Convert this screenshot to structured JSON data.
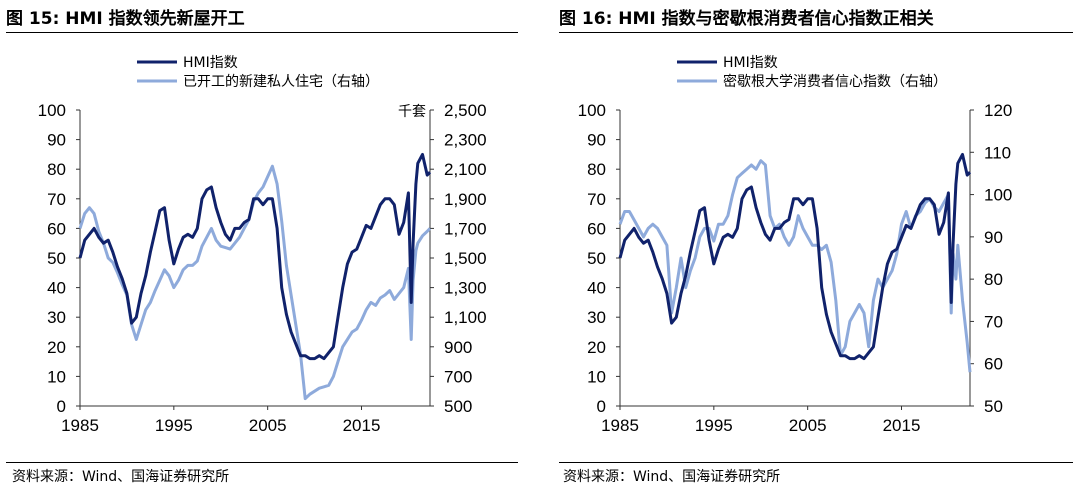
{
  "colors": {
    "hmi": "#10226b",
    "secondary": "#8eaadb",
    "axis": "#333333"
  },
  "footer": {
    "source": "资料来源：Wind、国海证券研究所"
  },
  "chart_data": [
    {
      "type": "line",
      "title": "图 15:  HMI 指数领先新屋开工",
      "xticks": [
        "1985",
        "1995",
        "2005",
        "2015"
      ],
      "xlim": [
        1985,
        2022.3
      ],
      "ylim_left": [
        0,
        100
      ],
      "yticks_left": [
        "0",
        "10",
        "20",
        "30",
        "40",
        "50",
        "60",
        "70",
        "80",
        "90",
        "100"
      ],
      "ylim_right": [
        500,
        2500
      ],
      "yticks_right": [
        "500",
        "700",
        "900",
        "1,100",
        "1,300",
        "1,500",
        "1,700",
        "1,900",
        "2,100",
        "2,300",
        "2,500"
      ],
      "right_unit": "千套",
      "series": [
        {
          "name": "HMI指数",
          "axis": "left",
          "color": "hmi",
          "x": [
            1985,
            1985.5,
            1986,
            1986.5,
            1987,
            1987.5,
            1988,
            1988.5,
            1989,
            1989.5,
            1990,
            1990.5,
            1991,
            1991.5,
            1992,
            1992.5,
            1993,
            1993.5,
            1994,
            1994.5,
            1995,
            1995.5,
            1996,
            1996.5,
            1997,
            1997.5,
            1998,
            1998.5,
            1999,
            1999.5,
            2000,
            2000.5,
            2001,
            2001.5,
            2002,
            2002.5,
            2003,
            2003.5,
            2004,
            2004.5,
            2005,
            2005.5,
            2006,
            2006.5,
            2007,
            2007.5,
            2008,
            2008.5,
            2009,
            2009.5,
            2010,
            2010.5,
            2011,
            2011.5,
            2012,
            2012.5,
            2013,
            2013.5,
            2014,
            2014.5,
            2015,
            2015.5,
            2016,
            2016.5,
            2017,
            2017.5,
            2018,
            2018.5,
            2019,
            2019.5,
            2020,
            2020.3,
            2020.5,
            2020.8,
            2021,
            2021.5,
            2022,
            2022.3
          ],
          "y": [
            50,
            56,
            58,
            60,
            57,
            55,
            56,
            52,
            47,
            43,
            38,
            28,
            30,
            38,
            44,
            52,
            59,
            66,
            67,
            56,
            48,
            53,
            57,
            58,
            57,
            60,
            70,
            73,
            74,
            67,
            62,
            58,
            56,
            60,
            60,
            62,
            63,
            70,
            70,
            68,
            70,
            70,
            60,
            40,
            31,
            25,
            21,
            17,
            17,
            16,
            16,
            17,
            16,
            18,
            20,
            30,
            40,
            48,
            52,
            53,
            57,
            61,
            60,
            64,
            68,
            70,
            70,
            68,
            58,
            62,
            72,
            35,
            55,
            75,
            82,
            85,
            78,
            79
          ]
        },
        {
          "name": "已开工的新建私人住宅（右轴）",
          "axis": "right",
          "color": "secondary",
          "x": [
            1985,
            1985.5,
            1986,
            1986.5,
            1987,
            1987.5,
            1988,
            1988.5,
            1989,
            1989.5,
            1990,
            1990.5,
            1991,
            1991.5,
            1992,
            1992.5,
            1993,
            1993.5,
            1994,
            1994.5,
            1995,
            1995.5,
            1996,
            1996.5,
            1997,
            1997.5,
            1998,
            1998.5,
            1999,
            1999.5,
            2000,
            2000.5,
            2001,
            2001.5,
            2002,
            2002.5,
            2003,
            2003.5,
            2004,
            2004.5,
            2005,
            2005.5,
            2006,
            2006.5,
            2007,
            2007.5,
            2008,
            2008.5,
            2009,
            2009.5,
            2010,
            2010.5,
            2011,
            2011.5,
            2012,
            2012.5,
            2013,
            2013.5,
            2014,
            2014.5,
            2015,
            2015.5,
            2016,
            2016.5,
            2017,
            2017.5,
            2018,
            2018.5,
            2019,
            2019.5,
            2020,
            2020.3,
            2020.5,
            2020.8,
            2021,
            2021.5,
            2022,
            2022.3
          ],
          "y": [
            1700,
            1800,
            1840,
            1800,
            1680,
            1600,
            1500,
            1470,
            1400,
            1320,
            1250,
            1050,
            950,
            1050,
            1150,
            1200,
            1280,
            1350,
            1420,
            1380,
            1300,
            1350,
            1420,
            1450,
            1450,
            1480,
            1580,
            1640,
            1700,
            1620,
            1580,
            1570,
            1560,
            1600,
            1640,
            1700,
            1760,
            1880,
            1940,
            1980,
            2050,
            2120,
            2000,
            1750,
            1450,
            1250,
            1050,
            850,
            550,
            580,
            600,
            620,
            630,
            640,
            700,
            800,
            900,
            950,
            1000,
            1020,
            1080,
            1150,
            1200,
            1180,
            1230,
            1250,
            1280,
            1220,
            1260,
            1300,
            1430,
            950,
            1350,
            1550,
            1600,
            1650,
            1680,
            1700
          ]
        }
      ]
    },
    {
      "type": "line",
      "title": "图 16:  HMI 指数与密歇根消费者信心指数正相关",
      "xticks": [
        "1985",
        "1995",
        "2005",
        "2015"
      ],
      "xlim": [
        1985,
        2022.3
      ],
      "ylim_left": [
        0,
        100
      ],
      "yticks_left": [
        "0",
        "10",
        "20",
        "30",
        "40",
        "50",
        "60",
        "70",
        "80",
        "90",
        "100"
      ],
      "ylim_right": [
        50,
        120
      ],
      "yticks_right": [
        "50",
        "60",
        "70",
        "80",
        "90",
        "100",
        "110",
        "120"
      ],
      "series": [
        {
          "name": "HMI指数",
          "axis": "left",
          "color": "hmi",
          "x": [
            1985,
            1985.5,
            1986,
            1986.5,
            1987,
            1987.5,
            1988,
            1988.5,
            1989,
            1989.5,
            1990,
            1990.5,
            1991,
            1991.5,
            1992,
            1992.5,
            1993,
            1993.5,
            1994,
            1994.5,
            1995,
            1995.5,
            1996,
            1996.5,
            1997,
            1997.5,
            1998,
            1998.5,
            1999,
            1999.5,
            2000,
            2000.5,
            2001,
            2001.5,
            2002,
            2002.5,
            2003,
            2003.5,
            2004,
            2004.5,
            2005,
            2005.5,
            2006,
            2006.5,
            2007,
            2007.5,
            2008,
            2008.5,
            2009,
            2009.5,
            2010,
            2010.5,
            2011,
            2011.5,
            2012,
            2012.5,
            2013,
            2013.5,
            2014,
            2014.5,
            2015,
            2015.5,
            2016,
            2016.5,
            2017,
            2017.5,
            2018,
            2018.5,
            2019,
            2019.5,
            2020,
            2020.3,
            2020.5,
            2020.8,
            2021,
            2021.5,
            2022,
            2022.3
          ],
          "y": [
            50,
            56,
            58,
            60,
            57,
            55,
            56,
            52,
            47,
            43,
            38,
            28,
            30,
            38,
            44,
            52,
            59,
            66,
            67,
            56,
            48,
            53,
            57,
            58,
            57,
            60,
            70,
            73,
            74,
            67,
            62,
            58,
            56,
            60,
            60,
            62,
            63,
            70,
            70,
            68,
            70,
            70,
            60,
            40,
            31,
            25,
            21,
            17,
            17,
            16,
            16,
            17,
            16,
            18,
            20,
            30,
            40,
            48,
            52,
            53,
            57,
            61,
            60,
            64,
            68,
            70,
            70,
            68,
            58,
            62,
            72,
            35,
            55,
            75,
            82,
            85,
            78,
            79
          ]
        },
        {
          "name": "密歇根大学消费者信心指数（右轴）",
          "axis": "right",
          "color": "secondary",
          "x": [
            1985,
            1985.5,
            1986,
            1986.5,
            1987,
            1987.5,
            1988,
            1988.5,
            1989,
            1989.5,
            1990,
            1990.5,
            1991,
            1991.5,
            1992,
            1992.5,
            1993,
            1993.5,
            1994,
            1994.5,
            1995,
            1995.5,
            1996,
            1996.5,
            1997,
            1997.5,
            1998,
            1998.5,
            1999,
            1999.5,
            2000,
            2000.5,
            2001,
            2001.5,
            2002,
            2002.5,
            2003,
            2003.5,
            2004,
            2004.5,
            2005,
            2005.5,
            2006,
            2006.5,
            2007,
            2007.5,
            2008,
            2008.5,
            2009,
            2009.5,
            2010,
            2010.5,
            2011,
            2011.5,
            2012,
            2012.5,
            2013,
            2013.5,
            2014,
            2014.5,
            2015,
            2015.5,
            2016,
            2016.5,
            2017,
            2017.5,
            2018,
            2018.5,
            2019,
            2019.5,
            2020,
            2020.3,
            2020.5,
            2020.8,
            2021,
            2021.5,
            2022,
            2022.3
          ],
          "y": [
            93,
            96,
            96,
            94,
            92,
            90,
            92,
            93,
            92,
            90,
            88,
            72,
            78,
            85,
            78,
            82,
            85,
            90,
            92,
            92,
            89,
            93,
            93,
            95,
            100,
            104,
            105,
            106,
            107,
            106,
            108,
            107,
            95,
            92,
            93,
            90,
            88,
            90,
            95,
            92,
            90,
            88,
            88,
            87,
            88,
            84,
            75,
            62,
            64,
            70,
            72,
            74,
            72,
            64,
            75,
            80,
            78,
            80,
            82,
            86,
            93,
            96,
            92,
            95,
            96,
            98,
            99,
            97,
            96,
            98,
            100,
            72,
            86,
            80,
            88,
            75,
            65,
            58
          ]
        }
      ]
    }
  ]
}
